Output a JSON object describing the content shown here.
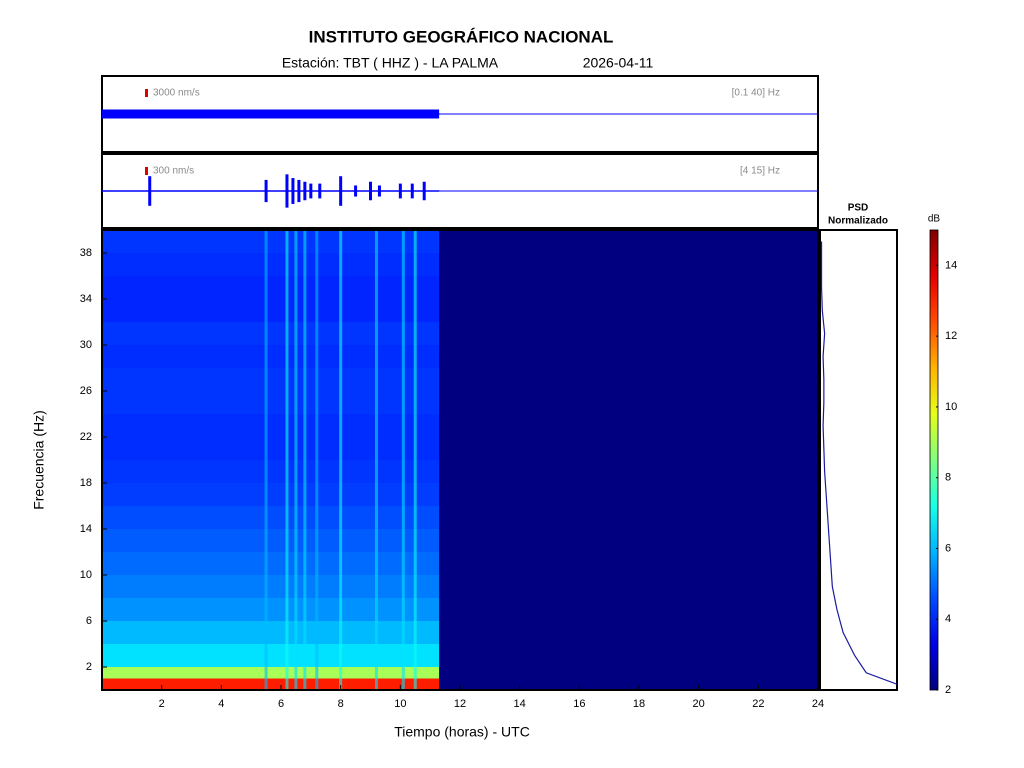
{
  "chart_data": {
    "type": "spectrogram",
    "title": "INSTITUTO GEOGRÁFICO NACIONAL",
    "subtitle": "Estación:  TBT ( HHZ ) - LA PALMA",
    "date": "2026-04-11",
    "xlabel": "Tiempo (horas) - UTC",
    "ylabel": "Frecuencia  (Hz)",
    "xlim": [
      0,
      24
    ],
    "xticks": [
      2,
      4,
      6,
      8,
      10,
      12,
      14,
      16,
      18,
      20,
      22,
      24
    ],
    "ylim": [
      0,
      40
    ],
    "yticks": [
      2,
      6,
      10,
      14,
      18,
      22,
      26,
      30,
      34,
      38
    ],
    "color": "#0000ff",
    "traces": [
      {
        "scale": "3000 nm/s",
        "band": "[0.1 40] Hz",
        "x": [
          0,
          2,
          4,
          6,
          8,
          10,
          11.3
        ],
        "values": [
          0.12,
          0.12,
          0.12,
          0.12,
          0.12,
          0.12,
          0.12
        ]
      },
      {
        "scale": "300 nm/s",
        "band": "[4 15] Hz",
        "x": [
          1.6,
          5.5,
          6.2,
          6.4,
          6.6,
          6.8,
          7.0,
          7.3,
          8.0,
          8.5,
          9.0,
          9.3,
          10.0,
          10.4,
          10.8
        ],
        "values": [
          0.4,
          0.3,
          0.45,
          0.35,
          0.3,
          0.25,
          0.2,
          0.2,
          0.4,
          0.15,
          0.25,
          0.15,
          0.2,
          0.2,
          0.25
        ]
      }
    ],
    "spectrogram": {
      "time_end": 11.3,
      "freq_bins": [
        0,
        1,
        2,
        4,
        6,
        8,
        10,
        12,
        14,
        16,
        18,
        20,
        22,
        24,
        26,
        28,
        30,
        32,
        34,
        36,
        38,
        40
      ],
      "values": [
        13,
        9,
        6.5,
        6,
        5.5,
        5.2,
        5,
        4.8,
        4.6,
        4.4,
        4.3,
        4.2,
        4.2,
        4.3,
        4.3,
        4.2,
        4.3,
        4.1,
        4.1,
        4.2,
        4.3
      ],
      "events": [
        5.5,
        6.2,
        6.5,
        6.8,
        7.2,
        8.0,
        9.2,
        10.1,
        10.5
      ],
      "event_values": [
        6,
        7,
        6.5,
        6.5,
        6,
        7,
        6.5,
        6.5,
        7
      ]
    },
    "psd": {
      "title": "PSD",
      "subtitle": "Normalizado",
      "xlim": [
        0,
        1
      ],
      "values": [
        1,
        0.6,
        0.45,
        0.3,
        0.22,
        0.16,
        0.14,
        0.12,
        0.1,
        0.08,
        0.06,
        0.05,
        0.04,
        0.05,
        0.05,
        0.04,
        0.06,
        0.03,
        0.02,
        0.02,
        0.02
      ]
    },
    "colorbar": {
      "label": "dB",
      "clim": [
        2,
        15
      ],
      "ticks": [
        2,
        4,
        6,
        8,
        10,
        12,
        14
      ]
    }
  }
}
